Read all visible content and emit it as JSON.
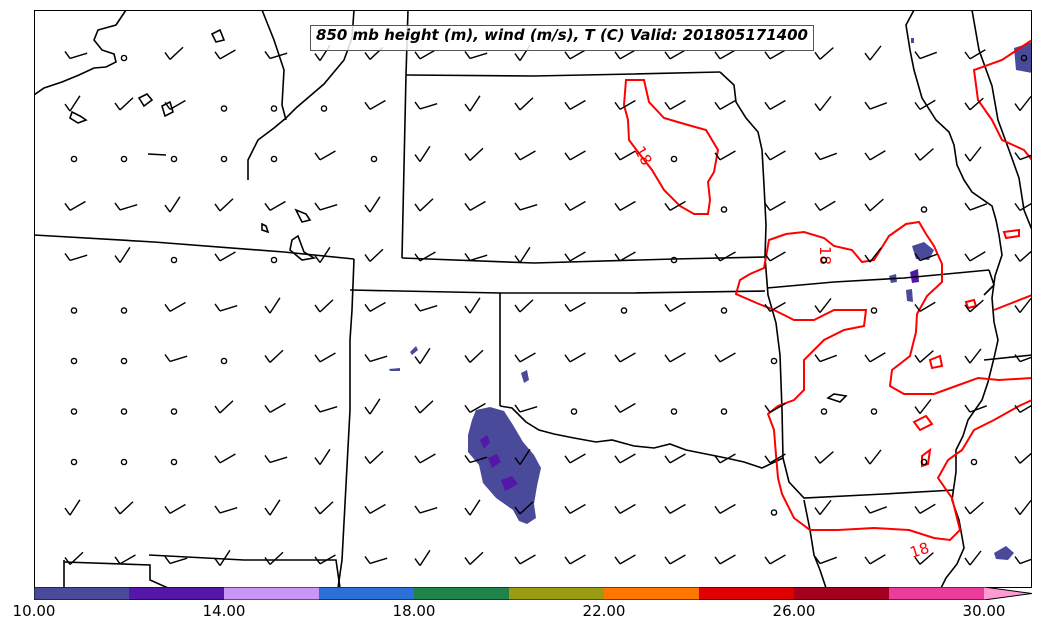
{
  "title": "850 mb height (m), wind (m/s), T (C) Valid: 201805171400",
  "contour": {
    "color": "#ff0000",
    "labels": [
      "18",
      "18",
      "18"
    ]
  },
  "colorbar": {
    "segments": [
      "#4a4a9a",
      "#5417a8",
      "#c897f5",
      "#2c6fd8",
      "#20844a",
      "#9b9b14",
      "#ff7600",
      "#e00000",
      "#a4001e",
      "#ee3c9c"
    ],
    "extend_color": "#ff9ad2",
    "tick_labels": [
      "10.00",
      "14.00",
      "18.00",
      "22.00",
      "26.00",
      "30.00"
    ]
  },
  "shading": {
    "base_color": "#4a4a9a",
    "core_color": "#5417a8"
  }
}
